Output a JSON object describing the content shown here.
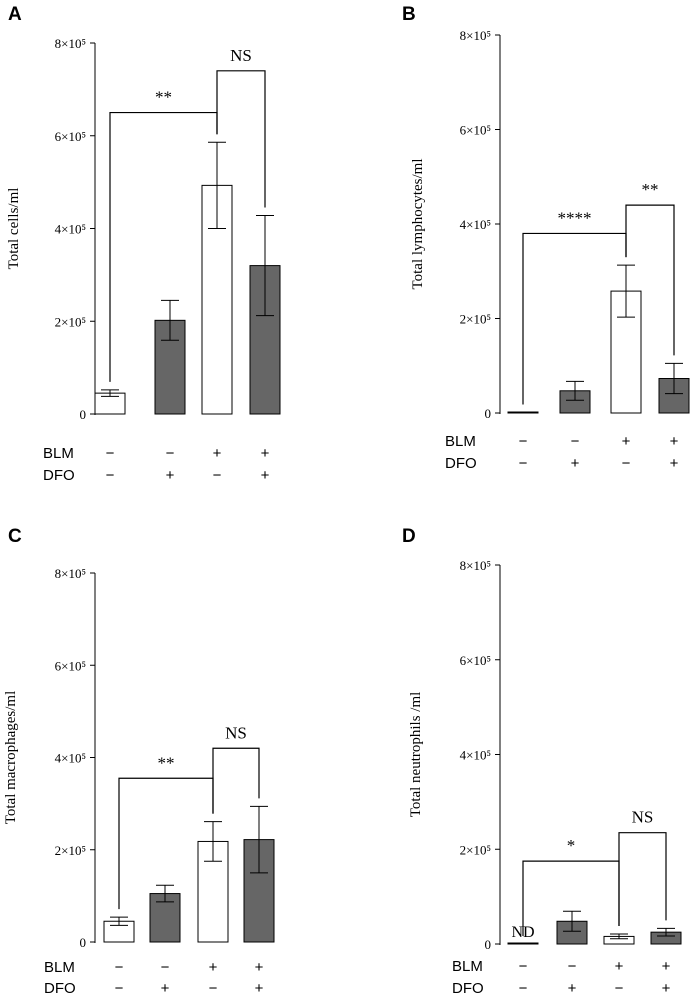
{
  "figure": {
    "conditions": [
      {
        "name": "BLM",
        "signs": [
          "−",
          "−",
          "+",
          "+"
        ]
      },
      {
        "name": "DFO",
        "signs": [
          "−",
          "+",
          "−",
          "+"
        ]
      }
    ],
    "colors": {
      "control": "#ffffff",
      "treated": "#666666",
      "stroke": "#000000"
    }
  },
  "chart_data": [
    {
      "panel": "A",
      "type": "bar",
      "ylabel": "Total  cells/ml",
      "ylim": [
        0,
        800000
      ],
      "yticks": [
        0,
        200000,
        400000,
        600000,
        800000
      ],
      "ytick_labels": [
        "0",
        "2×10⁵",
        "4×10⁵",
        "6×10⁵",
        "8×10⁵"
      ],
      "categories": [
        "BLM− DFO−",
        "BLM− DFO+",
        "BLM+ DFO−",
        "BLM+ DFO+"
      ],
      "values": [
        45000,
        202000,
        493000,
        320000
      ],
      "errors": [
        7000,
        43000,
        93000,
        108000
      ],
      "annotations": [
        {
          "text": "**",
          "from": 0,
          "to": 2,
          "y": 650000
        },
        {
          "text": "NS",
          "from": 2,
          "to": 3,
          "y": 740000
        }
      ]
    },
    {
      "panel": "B",
      "type": "bar",
      "ylabel": "Total  lymphocytes/ml",
      "ylim": [
        0,
        800000
      ],
      "yticks": [
        0,
        200000,
        400000,
        600000,
        800000
      ],
      "ytick_labels": [
        "0",
        "2×10⁵",
        "4×10⁵",
        "6×10⁵",
        "8×10⁵"
      ],
      "categories": [
        "BLM− DFO−",
        "BLM− DFO+",
        "BLM+ DFO−",
        "BLM+ DFO+"
      ],
      "values": [
        1000,
        47000,
        258000,
        73000
      ],
      "errors": [
        0,
        20000,
        55000,
        32000
      ],
      "annotations": [
        {
          "text": "****",
          "from": 0,
          "to": 2,
          "y": 380000
        },
        {
          "text": "**",
          "from": 2,
          "to": 3,
          "y": 440000
        }
      ]
    },
    {
      "panel": "C",
      "type": "bar",
      "ylabel": "Total  macrophages/ml",
      "ylim": [
        0,
        800000
      ],
      "yticks": [
        0,
        200000,
        400000,
        600000,
        800000
      ],
      "ytick_labels": [
        "0",
        "2×10⁵",
        "4×10⁵",
        "6×10⁵",
        "8×10⁵"
      ],
      "categories": [
        "BLM− DFO−",
        "BLM− DFO+",
        "BLM+ DFO−",
        "BLM+ DFO+"
      ],
      "values": [
        45000,
        105000,
        218000,
        222000
      ],
      "errors": [
        9000,
        18000,
        43000,
        72000
      ],
      "annotations": [
        {
          "text": "**",
          "from": 0,
          "to": 2,
          "y": 355000
        },
        {
          "text": "NS",
          "from": 2,
          "to": 3,
          "y": 420000
        }
      ]
    },
    {
      "panel": "D",
      "type": "bar",
      "ylabel": "Total  neutrophils /ml",
      "ylim": [
        0,
        800000
      ],
      "yticks": [
        0,
        200000,
        400000,
        600000,
        800000
      ],
      "ytick_labels": [
        "0",
        "2×10⁵",
        "4×10⁵",
        "6×10⁵",
        "8×10⁵"
      ],
      "categories": [
        "BLM− DFO−",
        "BLM− DFO+",
        "BLM+ DFO−",
        "BLM+ DFO+"
      ],
      "values": [
        0,
        48000,
        16000,
        25000
      ],
      "errors": [
        0,
        21000,
        5000,
        8000
      ],
      "missing_label": "ND",
      "annotations": [
        {
          "text": "*",
          "from": 0,
          "to": 2,
          "y": 175000
        },
        {
          "text": "NS",
          "from": 2,
          "to": 3,
          "y": 235000
        }
      ]
    }
  ]
}
